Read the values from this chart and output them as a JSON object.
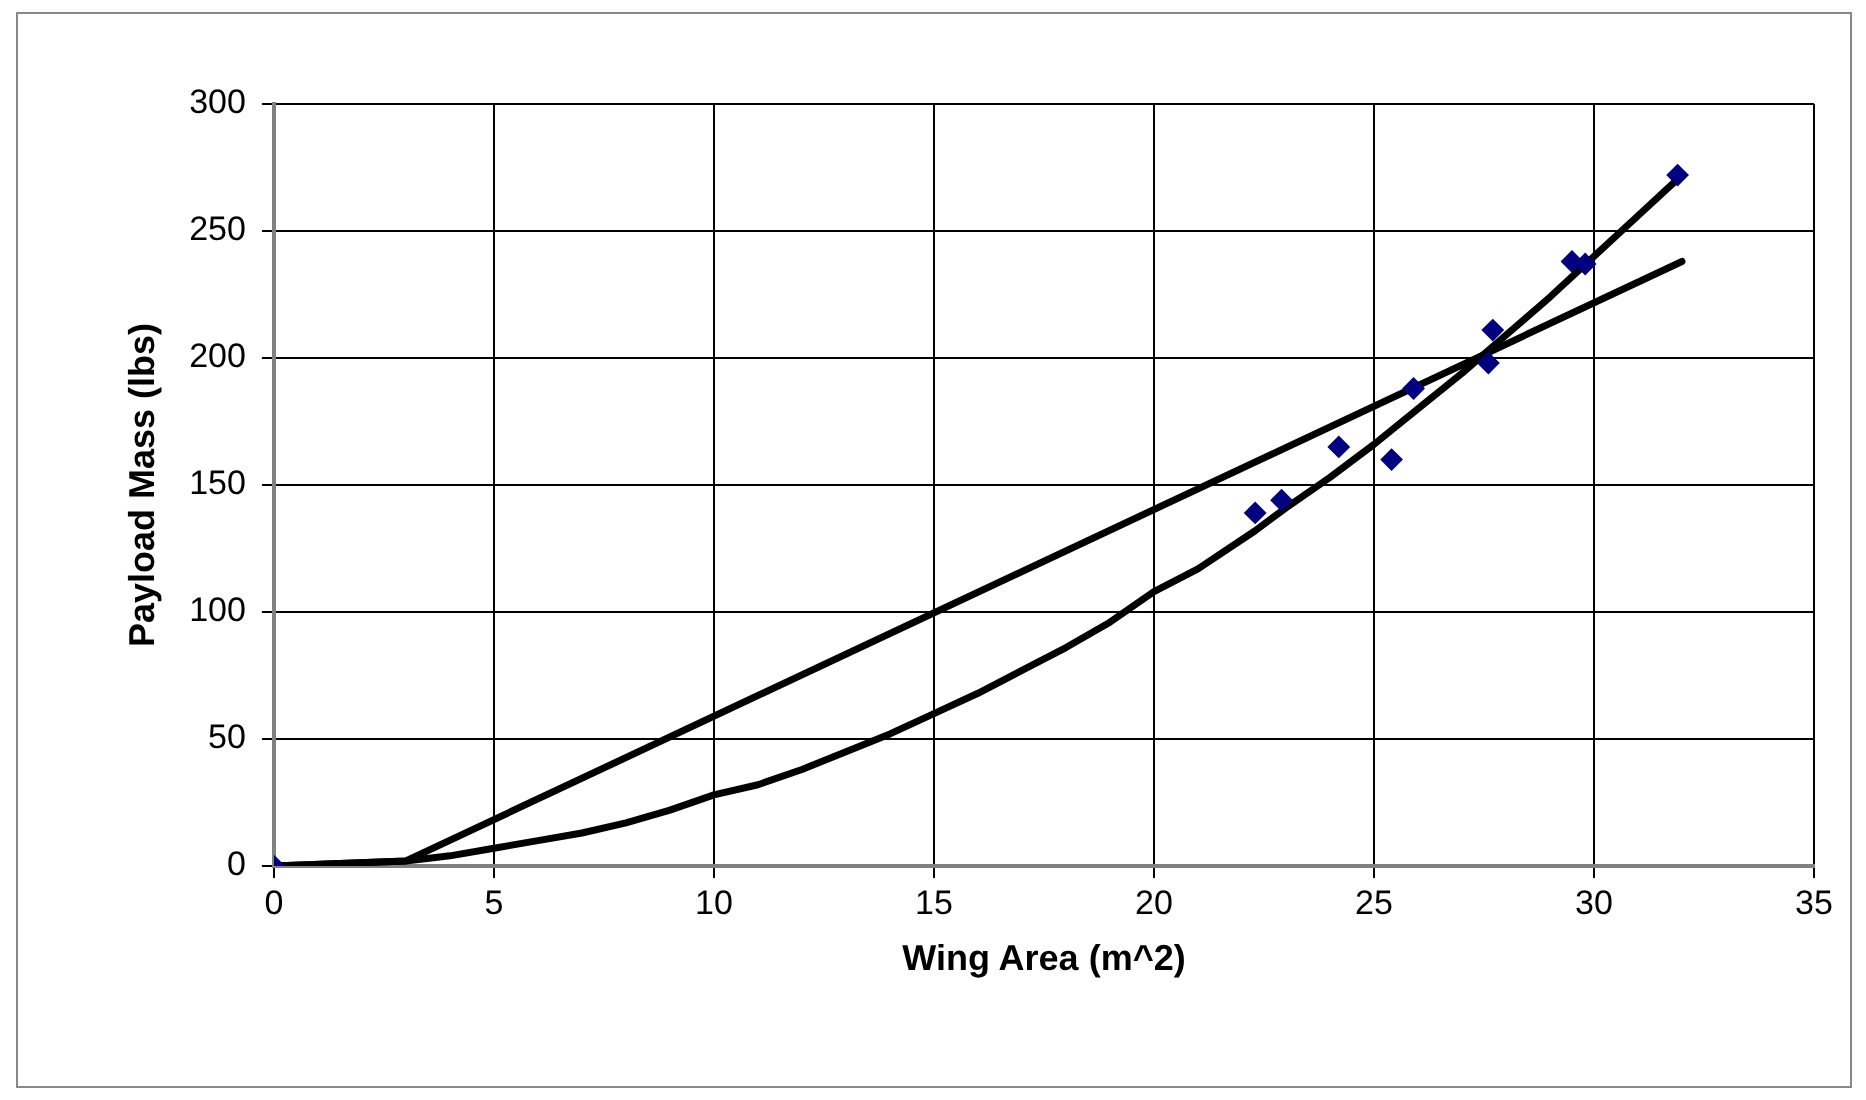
{
  "chart_data": {
    "type": "scatter",
    "xlabel": "Wing Area (m^2)",
    "ylabel": "Payload Mass (lbs)",
    "xlim": [
      0,
      35
    ],
    "xticks": [
      0,
      5,
      10,
      15,
      20,
      25,
      30,
      35
    ],
    "ylim": [
      0,
      300
    ],
    "yticks": [
      0,
      50,
      100,
      150,
      200,
      250,
      300
    ],
    "grid": true,
    "legend": false,
    "marker": "diamond",
    "series": [
      {
        "type": "scatter",
        "color": "#000080",
        "x": [
          0,
          22.3,
          22.9,
          24.2,
          25.4,
          25.9,
          27.6,
          27.7,
          29.5,
          29.8,
          31.9
        ],
        "values": [
          0,
          139,
          144,
          165,
          160,
          188,
          198,
          211,
          238,
          237,
          272
        ]
      },
      {
        "type": "line",
        "color": "#000000",
        "marker": "none",
        "x": [
          0,
          3,
          32
        ],
        "values": [
          0,
          2,
          238
        ]
      },
      {
        "type": "line",
        "color": "#000000",
        "marker": "none",
        "x": [
          0,
          3,
          4,
          5,
          6,
          7,
          8,
          9,
          10,
          11,
          12,
          13,
          14,
          15,
          16,
          17,
          18,
          19,
          20,
          21,
          22.3,
          23,
          24,
          25,
          26,
          27,
          28,
          29,
          30,
          31,
          32
        ],
        "values": [
          0,
          2,
          4,
          7,
          10,
          13,
          17,
          22,
          28,
          32,
          38,
          45,
          52,
          60,
          68,
          77,
          86,
          96,
          108,
          117,
          132,
          141,
          153,
          166,
          180,
          194,
          209,
          224,
          240,
          256,
          272
        ]
      }
    ]
  }
}
